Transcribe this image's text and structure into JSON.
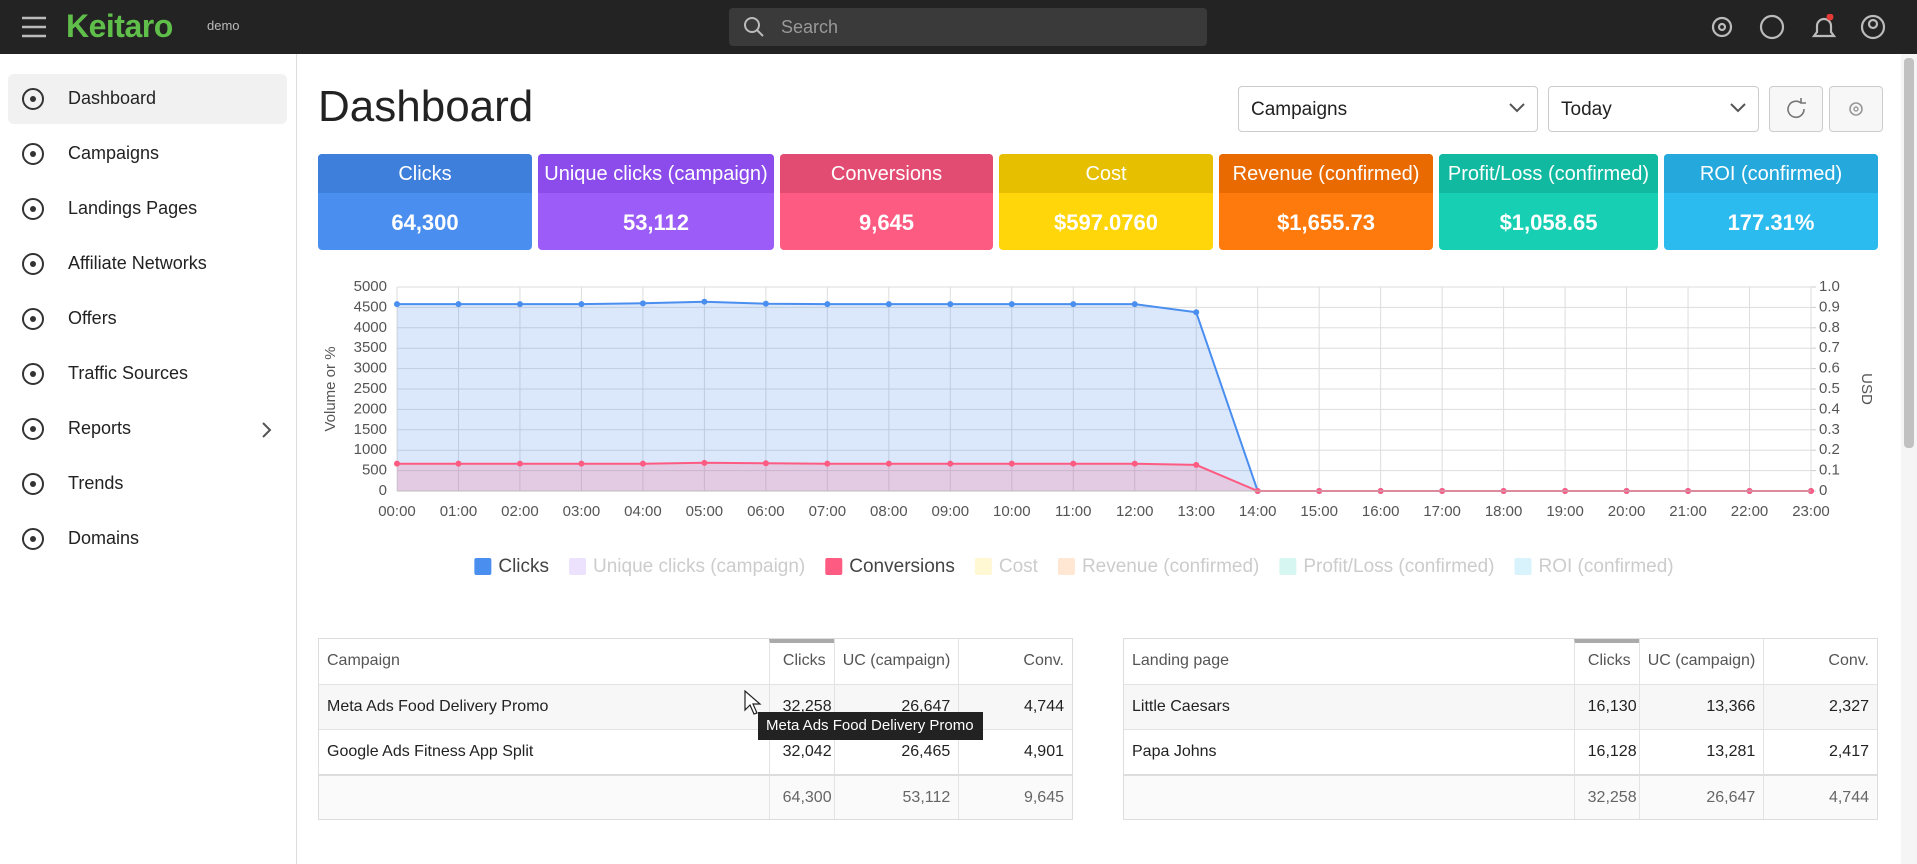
{
  "header": {
    "brand": "Keitaro",
    "badge": "demo",
    "search_placeholder": "Search"
  },
  "sidebar": {
    "items": [
      "Dashboard",
      "Campaigns",
      "Landings Pages",
      "Affiliate Networks",
      "Offers",
      "Traffic Sources",
      "Reports",
      "Trends",
      "Domains"
    ]
  },
  "toolbar": {
    "title": "Dashboard",
    "selects": [
      "Campaigns",
      "Today"
    ]
  },
  "cards": [
    {
      "label": "Clicks",
      "value": "64,300",
      "color": "#4a8ef0",
      "header_color": "#3f7fdc"
    },
    {
      "label": "Unique clicks (campaign)",
      "value": "53,112",
      "color": "#9b5cf7",
      "header_color": "#8c4ceb"
    },
    {
      "label": "Conversions",
      "value": "9,645",
      "color": "#fd5b82",
      "header_color": "#e34c72"
    },
    {
      "label": "Cost",
      "value": "$597.0760",
      "color": "#ffd60a",
      "header_color": "#e6c000"
    },
    {
      "label": "Revenue (confirmed)",
      "value": "$1,655.73",
      "color": "#ff7a0d",
      "header_color": "#e86a00"
    },
    {
      "label": "Profit/Loss (confirmed)",
      "value": "$1,058.65",
      "color": "#17cfb2",
      "header_color": "#11b9a0"
    },
    {
      "label": "ROI (confirmed)",
      "value": "177.31%",
      "color": "#2bbbef",
      "header_color": "#25a8db"
    }
  ],
  "chart_data": {
    "type": "line",
    "categories": [
      "00:00",
      "01:00",
      "02:00",
      "03:00",
      "04:00",
      "05:00",
      "06:00",
      "07:00",
      "08:00",
      "09:00",
      "10:00",
      "11:00",
      "12:00",
      "13:00",
      "14:00",
      "15:00",
      "16:00",
      "17:00",
      "18:00",
      "19:00",
      "20:00",
      "21:00",
      "22:00",
      "23:00"
    ],
    "ylabel": "Volume or %",
    "y2label": "USD",
    "ylim": [
      0,
      5000
    ],
    "yticks": [
      0,
      500,
      1000,
      1500,
      2000,
      2500,
      3000,
      3500,
      4000,
      4500,
      5000
    ],
    "y2lim": [
      0,
      1
    ],
    "y2ticks": [
      0,
      0.1,
      0.2,
      0.3,
      0.4,
      0.5,
      0.6,
      0.7,
      0.8,
      0.9,
      {
        "value": 1,
        "label": "1.0"
      }
    ],
    "grid": true,
    "series": [
      {
        "name": "Clicks",
        "color": "#4a8ef0",
        "values": [
          4580,
          4580,
          4580,
          4580,
          4600,
          4640,
          4590,
          4580,
          4580,
          4580,
          4580,
          4580,
          4580,
          4380,
          0,
          0,
          0,
          0,
          0,
          0,
          0,
          0,
          0,
          0
        ]
      },
      {
        "name": "Unique clicks (campaign)",
        "color": "#9b5cf7",
        "hidden": true
      },
      {
        "name": "Conversions",
        "color": "#fd5b82",
        "values": [
          670,
          670,
          670,
          670,
          670,
          690,
          680,
          670,
          670,
          670,
          670,
          670,
          670,
          640,
          0,
          0,
          0,
          0,
          0,
          0,
          0,
          0,
          0,
          0
        ]
      },
      {
        "name": "Cost",
        "color": "#ffd60a",
        "hidden": true
      },
      {
        "name": "Revenue (confirmed)",
        "color": "#ff7a0d",
        "hidden": true
      },
      {
        "name": "Profit/Loss (confirmed)",
        "color": "#17cfb2",
        "hidden": true
      },
      {
        "name": "ROI (confirmed)",
        "color": "#2bbbef",
        "hidden": true
      }
    ]
  },
  "tables": [
    {
      "columns": [
        "Campaign",
        "Clicks",
        "UC (campaign)",
        "Conv."
      ],
      "rows": [
        [
          "Meta Ads Food Delivery Promo",
          "32,258",
          "26,647",
          "4,744"
        ],
        [
          "Google Ads Fitness App Split",
          "32,042",
          "26,465",
          "4,901"
        ]
      ],
      "totals": [
        "64,300",
        "53,112",
        "9,645"
      ]
    },
    {
      "columns": [
        "Landing page",
        "Clicks",
        "UC (campaign)",
        "Conv."
      ],
      "rows": [
        [
          "Little Caesars",
          "16,130",
          "13,366",
          "2,327"
        ],
        [
          "Papa Johns",
          "16,128",
          "13,281",
          "2,417"
        ]
      ],
      "totals": [
        "32,258",
        "26,647",
        "4,744"
      ]
    }
  ],
  "tooltip": {
    "text": "Meta Ads Food Delivery Promo"
  }
}
